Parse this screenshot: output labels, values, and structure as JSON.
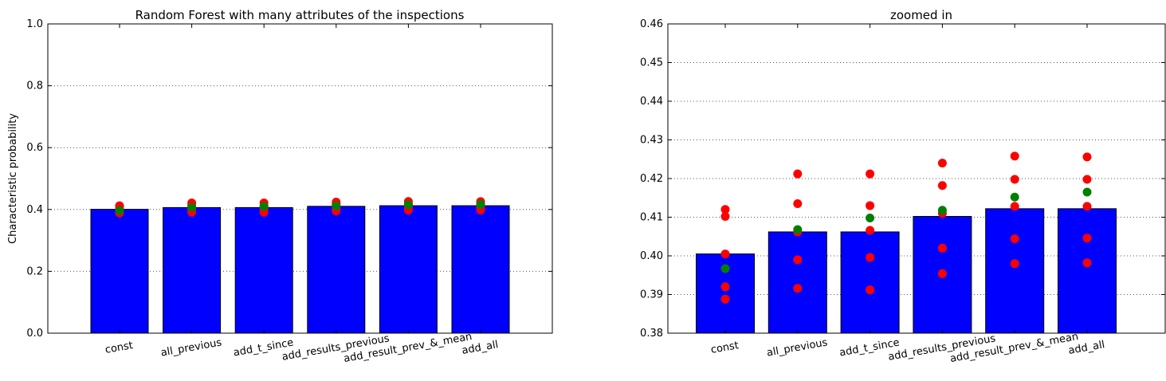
{
  "chart_data": [
    {
      "type": "bar",
      "title": "Random Forest with many attributes of the inspections",
      "xlabel": "",
      "ylabel": "Characteristic probability",
      "ylim": [
        0.0,
        1.0
      ],
      "yticks": [
        "0.0",
        "0.2",
        "0.4",
        "0.6",
        "0.8",
        "1.0"
      ],
      "grid": "y-dotted",
      "categories": [
        "const",
        "all_previous",
        "add_t_since",
        "add_results_previous",
        "add_result_prev_&_mean",
        "add_all"
      ],
      "values": [
        0.4005,
        0.4062,
        0.4062,
        0.4102,
        0.4122,
        0.4122
      ],
      "red_points": [
        [
          0.412,
          0.4102,
          0.4005,
          0.392,
          0.3888
        ],
        [
          0.4212,
          0.4135,
          0.399,
          0.3916,
          0.4062
        ],
        [
          0.4212,
          0.413,
          0.3996,
          0.3912,
          0.4066
        ],
        [
          0.424,
          0.4182,
          0.402,
          0.3954,
          0.411
        ],
        [
          0.4258,
          0.4198,
          0.4044,
          0.398,
          0.4128
        ],
        [
          0.4256,
          0.4198,
          0.4046,
          0.3982,
          0.4128
        ]
      ],
      "green_points": [
        0.3967,
        0.4068,
        0.4098,
        0.4118,
        0.4152,
        0.4165
      ],
      "colors": {
        "bar": "#0000ff",
        "red": "#ff0000",
        "green": "#008000",
        "grid": "#555555"
      }
    },
    {
      "type": "bar",
      "title": "zoomed in",
      "xlabel": "",
      "ylabel": "",
      "ylim": [
        0.38,
        0.46
      ],
      "yticks": [
        "0.38",
        "0.39",
        "0.40",
        "0.41",
        "0.42",
        "0.43",
        "0.44",
        "0.45",
        "0.46"
      ],
      "grid": "y-dotted",
      "categories": [
        "const",
        "all_previous",
        "add_t_since",
        "add_results_previous",
        "add_result_prev_&_mean",
        "add_all"
      ],
      "values": [
        0.4005,
        0.4062,
        0.4062,
        0.4102,
        0.4122,
        0.4122
      ],
      "red_points": [
        [
          0.412,
          0.4102,
          0.4005,
          0.392,
          0.3888
        ],
        [
          0.4212,
          0.4135,
          0.399,
          0.3916,
          0.4062
        ],
        [
          0.4212,
          0.413,
          0.3996,
          0.3912,
          0.4066
        ],
        [
          0.424,
          0.4182,
          0.402,
          0.3954,
          0.411
        ],
        [
          0.4258,
          0.4198,
          0.4044,
          0.398,
          0.4128
        ],
        [
          0.4256,
          0.4198,
          0.4046,
          0.3982,
          0.4128
        ]
      ],
      "green_points": [
        0.3967,
        0.4068,
        0.4098,
        0.4118,
        0.4152,
        0.4165
      ],
      "colors": {
        "bar": "#0000ff",
        "red": "#ff0000",
        "green": "#008000",
        "grid": "#555555"
      }
    }
  ]
}
